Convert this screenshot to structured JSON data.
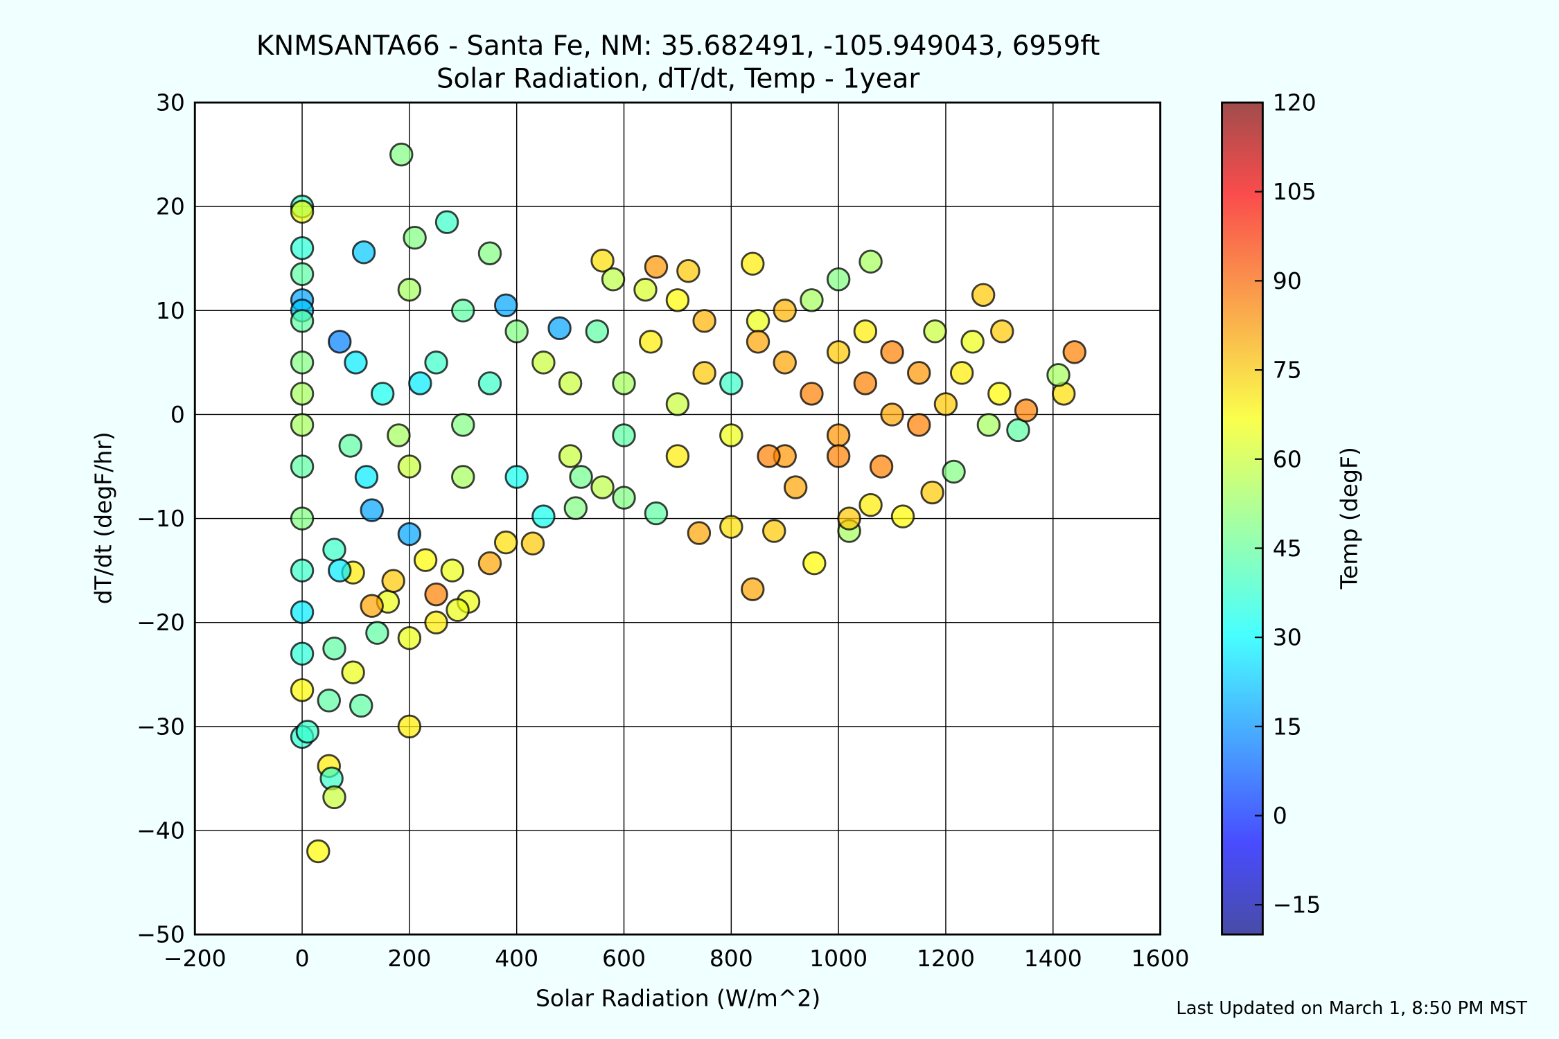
{
  "chart_data": {
    "type": "scatter",
    "title": "KNMSANTA66 - Santa Fe, NM: 35.682491, -105.949043, 6959ft",
    "subtitle": "Solar Radiation, dT/dt, Temp - 1year",
    "x_label": "Solar Radiation (W/m^2)",
    "y_label": "dT/dt (degF/hr)",
    "colorbar_label": "Temp (degF)",
    "footer": "Last Updated on March 1, 8:50 PM MST",
    "grid": true,
    "colormap": "jet",
    "xlim": [
      -200,
      1600
    ],
    "xticks": [
      {
        "value": -200,
        "label": "−200"
      },
      0,
      200,
      400,
      600,
      800,
      1000,
      1200,
      1400,
      1600
    ],
    "ylim": [
      -50,
      30
    ],
    "yticks": [
      {
        "value": -50,
        "label": "−50"
      },
      {
        "value": -40,
        "label": "−40"
      },
      {
        "value": -30,
        "label": "−30"
      },
      {
        "value": -20,
        "label": "−20"
      },
      {
        "value": -10,
        "label": "−10"
      },
      0,
      10,
      20,
      30
    ],
    "clim": [
      -20,
      120
    ],
    "cticks": [
      {
        "value": -15,
        "label": "−15"
      },
      0,
      15,
      30,
      45,
      60,
      75,
      90,
      105,
      120
    ],
    "series": [
      {
        "x": [
          0,
          0,
          0,
          0,
          0,
          0,
          0,
          0,
          0,
          0,
          0,
          0,
          0,
          0,
          0,
          0,
          0,
          10,
          50,
          55,
          60,
          30,
          50,
          110,
          60,
          95,
          200,
          200,
          140,
          185,
          270,
          115,
          210,
          350,
          560,
          660,
          720,
          840,
          1060,
          1270,
          1305,
          1440,
          1420,
          1410,
          1335,
          1280,
          1350,
          1215,
          1175,
          1120,
          1060,
          1020,
          955,
          840,
          800,
          740,
          880,
          660,
          600,
          510,
          450,
          430,
          380,
          350,
          310,
          290,
          250,
          250,
          160,
          130,
          95,
          200,
          130,
          200,
          100,
          70,
          480,
          380,
          300,
          400,
          500,
          600,
          700,
          750,
          800,
          900,
          950,
          1000,
          1050,
          1100,
          1150,
          1200,
          1000,
          1050,
          900,
          850,
          950,
          1000,
          1100,
          1150,
          1000,
          900,
          800,
          700,
          600,
          500,
          400,
          300,
          200,
          250,
          150,
          180,
          220,
          300,
          450,
          550,
          650,
          750,
          850,
          350,
          120,
          90,
          60,
          70,
          1250,
          1230,
          1300,
          1180,
          1080,
          1020,
          920,
          870,
          640,
          700,
          580,
          520,
          560,
          230,
          170,
          280
        ],
        "values": [
          20,
          19.5,
          16,
          13.5,
          11,
          10,
          9,
          5,
          2,
          -1,
          -5,
          -10,
          -15,
          -19,
          -23,
          -26.5,
          -31,
          -30.5,
          -33.8,
          -35,
          -36.8,
          -42,
          -27.5,
          -28,
          -22.5,
          -24.8,
          -30,
          -21.5,
          -21,
          25,
          18.5,
          15.6,
          17,
          15.5,
          14.8,
          14.2,
          13.8,
          14.5,
          14.7,
          11.5,
          8,
          6,
          2,
          3.8,
          -1.5,
          -1,
          0.4,
          -5.5,
          -7.5,
          -9.8,
          -8.7,
          -11.2,
          -14.3,
          -16.8,
          -10.8,
          -11.4,
          -11.2,
          -9.5,
          -8,
          -9,
          -9.8,
          -12.4,
          -12.3,
          -14.3,
          -18,
          -18.8,
          -20,
          -17.3,
          -18,
          -18.4,
          -15.2,
          -11.5,
          -9.2,
          -5,
          5,
          7,
          8.3,
          10.5,
          -1,
          -6,
          3,
          3,
          1,
          4,
          3,
          5,
          2,
          -2,
          3,
          0,
          -1,
          1,
          6,
          8,
          10,
          9,
          11,
          13,
          6,
          4,
          -4,
          -4,
          -2,
          -4,
          -2,
          -4,
          8,
          10,
          12,
          5,
          2,
          -2,
          3,
          -6,
          5,
          8,
          7,
          9,
          7,
          3,
          -6,
          -3,
          -13,
          -15,
          7,
          4,
          2,
          8,
          -5,
          -10,
          -7,
          -4,
          12,
          11,
          13,
          -6,
          -7,
          -14,
          -16,
          -15
        ],
        "temps": [
          40,
          65,
          38,
          45,
          20,
          25,
          45,
          50,
          55,
          55,
          45,
          50,
          40,
          30,
          38,
          68,
          38,
          40,
          70,
          40,
          60,
          68,
          45,
          45,
          45,
          65,
          70,
          65,
          45,
          50,
          40,
          25,
          50,
          50,
          72,
          82,
          75,
          70,
          55,
          75,
          75,
          85,
          72,
          55,
          45,
          55,
          85,
          50,
          75,
          68,
          70,
          55,
          68,
          80,
          72,
          80,
          75,
          45,
          50,
          50,
          35,
          75,
          72,
          80,
          65,
          65,
          70,
          85,
          65,
          80,
          70,
          20,
          20,
          60,
          30,
          15,
          20,
          20,
          50,
          35,
          60,
          55,
          60,
          75,
          40,
          80,
          85,
          82,
          85,
          80,
          85,
          75,
          75,
          70,
          78,
          65,
          55,
          50,
          85,
          82,
          85,
          82,
          65,
          70,
          45,
          60,
          50,
          45,
          55,
          40,
          35,
          55,
          30,
          55,
          60,
          45,
          70,
          78,
          80,
          40,
          30,
          45,
          40,
          30,
          65,
          70,
          68,
          60,
          85,
          75,
          80,
          85,
          62,
          68,
          58,
          48,
          58,
          68,
          75,
          65
        ]
      }
    ]
  }
}
